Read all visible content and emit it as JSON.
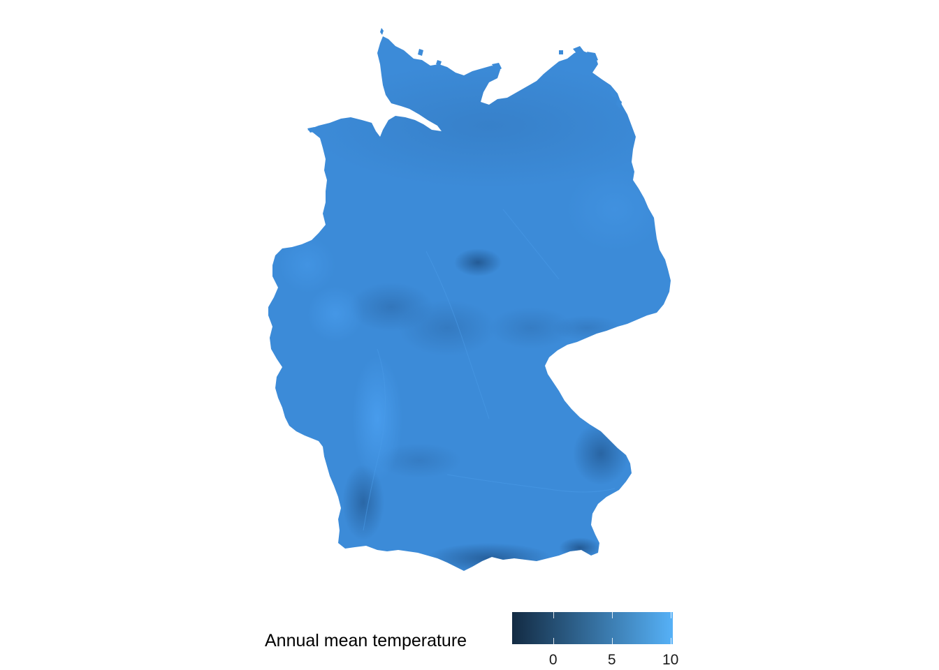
{
  "legend": {
    "title": "Annual mean temperature",
    "scale": {
      "min": -3.5,
      "max": 10.2,
      "low_color": "#132B43",
      "high_color": "#56B1F7",
      "ticks": [
        {
          "value": 0,
          "label": "0"
        },
        {
          "value": 5,
          "label": "5"
        },
        {
          "value": 10,
          "label": "10"
        }
      ]
    }
  },
  "map": {
    "region": "Germany",
    "fill_base": "#3C8BD8",
    "fill_dark": "#245A93",
    "fill_light": "#4A9EEC"
  }
}
